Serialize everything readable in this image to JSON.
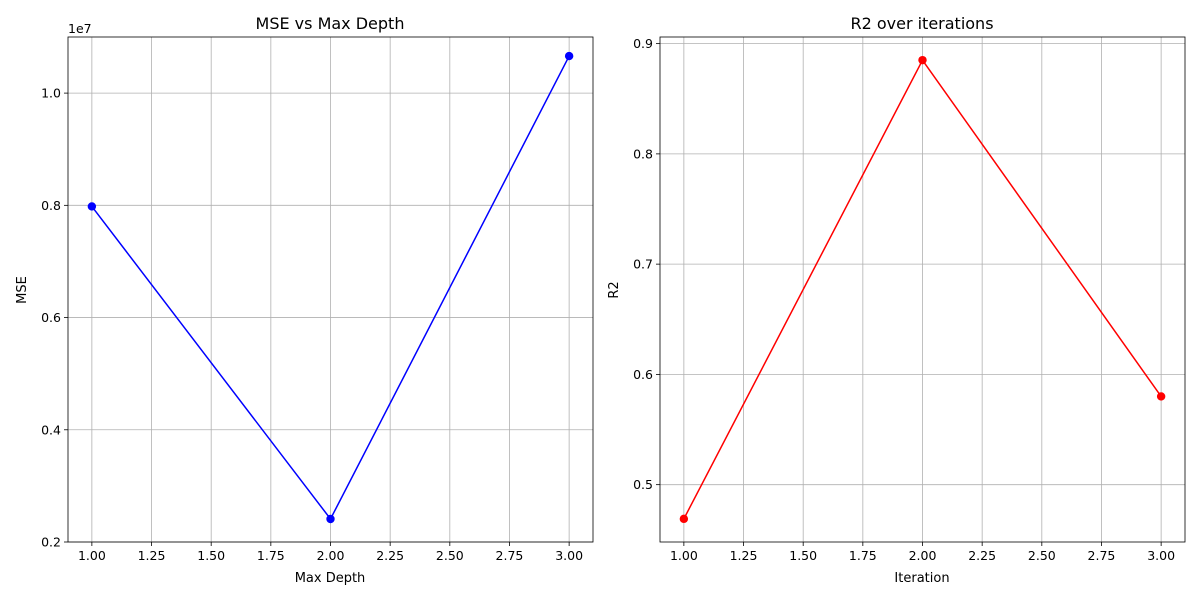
{
  "chart_data": [
    {
      "type": "line",
      "title": "MSE vs Max Depth",
      "xlabel": "Max Depth",
      "ylabel": "MSE",
      "y_offset_label": "1e7",
      "xlim": [
        0.9,
        3.1
      ],
      "ylim": [
        0.2,
        1.1
      ],
      "x_ticks": [
        1.0,
        1.25,
        1.5,
        1.75,
        2.0,
        2.25,
        2.5,
        2.75,
        3.0
      ],
      "x_tick_labels": [
        "1.00",
        "1.25",
        "1.50",
        "1.75",
        "2.00",
        "2.25",
        "2.50",
        "2.75",
        "3.00"
      ],
      "y_ticks": [
        0.2,
        0.4,
        0.6,
        0.8,
        1.0
      ],
      "y_tick_labels": [
        "0.2",
        "0.4",
        "0.6",
        "0.8",
        "1.0"
      ],
      "grid": true,
      "series": [
        {
          "color": "#0000ff",
          "marker": "circle",
          "x": [
            1,
            2,
            3
          ],
          "y": [
            0.798,
            0.241,
            1.066
          ]
        }
      ]
    },
    {
      "type": "line",
      "title": "R2 over iterations",
      "xlabel": "Iteration",
      "ylabel": "R2",
      "xlim": [
        0.9,
        3.1
      ],
      "ylim": [
        0.448,
        0.906
      ],
      "x_ticks": [
        1.0,
        1.25,
        1.5,
        1.75,
        2.0,
        2.25,
        2.5,
        2.75,
        3.0
      ],
      "x_tick_labels": [
        "1.00",
        "1.25",
        "1.50",
        "1.75",
        "2.00",
        "2.25",
        "2.50",
        "2.75",
        "3.00"
      ],
      "y_ticks": [
        0.5,
        0.6,
        0.7,
        0.8,
        0.9
      ],
      "y_tick_labels": [
        "0.5",
        "0.6",
        "0.7",
        "0.8",
        "0.9"
      ],
      "grid": true,
      "series": [
        {
          "color": "#ff0000",
          "marker": "circle",
          "x": [
            1,
            2,
            3
          ],
          "y": [
            0.469,
            0.885,
            0.58
          ]
        }
      ]
    }
  ]
}
